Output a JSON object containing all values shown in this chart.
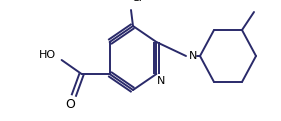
{
  "bg_color": "#ffffff",
  "line_color": "#2a2a6a",
  "text_color": "#000000",
  "lw": 1.4,
  "figsize": [
    2.81,
    1.21
  ],
  "dpi": 100,
  "xlim": [
    0,
    281
  ],
  "ylim": [
    0,
    121
  ]
}
